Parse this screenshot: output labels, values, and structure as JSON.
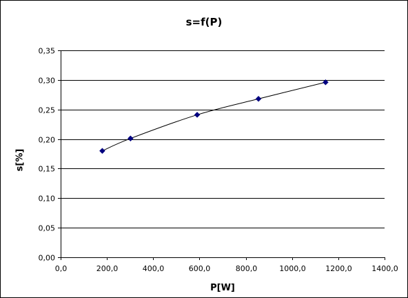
{
  "chart_data": {
    "type": "scatter",
    "title": "s=f(P)",
    "xlabel": "P[W]",
    "ylabel": "s[%]",
    "xlim": [
      0,
      1400
    ],
    "ylim": [
      0,
      0.35
    ],
    "x_ticks": [
      "0,0",
      "200,0",
      "400,0",
      "600,0",
      "800,0",
      "1000,0",
      "1200,0",
      "1400,0"
    ],
    "y_ticks": [
      "0,00",
      "0,05",
      "0,10",
      "0,15",
      "0,20",
      "0,25",
      "0,30",
      "0,35"
    ],
    "grid": "horizontal major gridlines",
    "legend": "none",
    "series": [
      {
        "x": [
          180,
          302,
          590,
          855,
          1145
        ],
        "y": [
          0.18,
          0.201,
          0.241,
          0.268,
          0.296
        ]
      }
    ],
    "trendline": "smooth curve through points",
    "colors": {
      "marker": "#000080",
      "line": "#000000",
      "grid": "#000000",
      "background": "#ffffff"
    }
  }
}
